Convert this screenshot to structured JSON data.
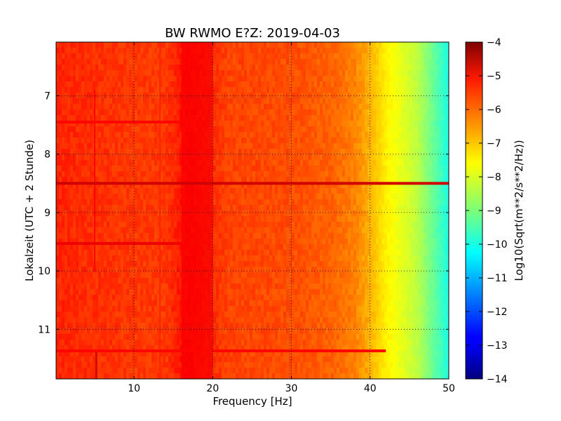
{
  "chart_data": {
    "type": "heatmap",
    "title": "BW RWMO E?Z: 2019-04-03",
    "xlabel": "Frequency [Hz]",
    "ylabel": "Lokalzeit (UTC + 2 Stunde)",
    "xlim": [
      0.1,
      50
    ],
    "ylim": [
      11.85,
      6.08
    ],
    "y_inverted": true,
    "x_ticks": [
      10,
      20,
      30,
      40,
      50
    ],
    "x_tick_labels": [
      "10",
      "20",
      "30",
      "40",
      "50"
    ],
    "y_ticks": [
      7,
      8,
      9,
      10,
      11
    ],
    "y_tick_labels": [
      "7",
      "8",
      "9",
      "10",
      "11"
    ],
    "grid": true,
    "colormap": "jet",
    "colorbar": {
      "label": "Log10(Sqrt(m**2/s**2/Hz))",
      "range": [
        -14,
        -4
      ],
      "ticks": [
        -4,
        -5,
        -6,
        -7,
        -8,
        -9,
        -10,
        -11,
        -12,
        -13,
        -14
      ],
      "tick_labels": [
        "−4",
        "−5",
        "−6",
        "−7",
        "−8",
        "−9",
        "−10",
        "−11",
        "−12",
        "−13",
        "−14"
      ]
    },
    "baseline_level_by_frequency": [
      {
        "hz": 0.1,
        "value": -5.6
      },
      {
        "hz": 10,
        "value": -5.8
      },
      {
        "hz": 14,
        "value": -5.8
      },
      {
        "hz": 17,
        "value": -5.3
      },
      {
        "hz": 19,
        "value": -5.6
      },
      {
        "hz": 22,
        "value": -5.9
      },
      {
        "hz": 30,
        "value": -6.0
      },
      {
        "hz": 35,
        "value": -6.2
      },
      {
        "hz": 38,
        "value": -6.5
      },
      {
        "hz": 40,
        "value": -7.0
      },
      {
        "hz": 42,
        "value": -7.6
      },
      {
        "hz": 44,
        "value": -8.0
      },
      {
        "hz": 46,
        "value": -8.4
      },
      {
        "hz": 48,
        "value": -9.2
      },
      {
        "hz": 50,
        "value": -10.0
      }
    ],
    "notable_features": [
      {
        "kind": "band",
        "x_range": [
          16,
          20
        ],
        "value": -5.2
      },
      {
        "kind": "line",
        "x": 5.0,
        "y_range": [
          6.9,
          10.0
        ],
        "value": -5.3
      },
      {
        "kind": "line",
        "x": 5.2,
        "y_range": [
          11.35,
          11.85
        ],
        "value": -4.6
      },
      {
        "kind": "line",
        "x": 13.3,
        "y_range": [
          6.08,
          11.85
        ],
        "value": -5.6
      },
      {
        "kind": "row",
        "y": 8.5,
        "x_range": [
          0.1,
          50
        ],
        "value": -4.8
      },
      {
        "kind": "row",
        "y": 9.53,
        "x_range": [
          0.1,
          16
        ],
        "value": -5.1
      },
      {
        "kind": "row",
        "y": 11.37,
        "x_range": [
          0.1,
          42
        ],
        "value": -5.3
      },
      {
        "kind": "row",
        "y": 7.45,
        "x_range": [
          0.1,
          16
        ],
        "value": -5.3
      }
    ]
  }
}
